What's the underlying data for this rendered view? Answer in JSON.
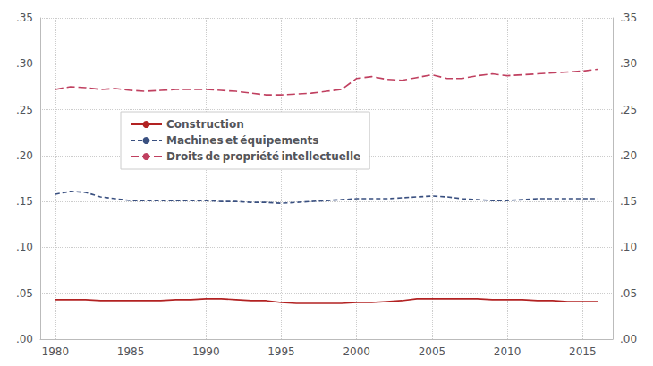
{
  "chart_data": {
    "type": "line",
    "x": [
      1980,
      1981,
      1982,
      1983,
      1984,
      1985,
      1986,
      1987,
      1988,
      1989,
      1990,
      1991,
      1992,
      1993,
      1994,
      1995,
      1996,
      1997,
      1998,
      1999,
      2000,
      2001,
      2002,
      2003,
      2004,
      2005,
      2006,
      2007,
      2008,
      2009,
      2010,
      2011,
      2012,
      2013,
      2014,
      2015,
      2016
    ],
    "series": [
      {
        "name": "Construction",
        "color": "#b22222",
        "line_style": "solid",
        "values": [
          0.043,
          0.043,
          0.043,
          0.042,
          0.042,
          0.042,
          0.042,
          0.042,
          0.043,
          0.043,
          0.044,
          0.044,
          0.043,
          0.042,
          0.042,
          0.04,
          0.039,
          0.039,
          0.039,
          0.039,
          0.04,
          0.04,
          0.041,
          0.042,
          0.044,
          0.044,
          0.044,
          0.044,
          0.044,
          0.043,
          0.043,
          0.043,
          0.042,
          0.042,
          0.041,
          0.041,
          0.041
        ]
      },
      {
        "name": "Machines et équipements",
        "color": "#3a5080",
        "line_style": "dashed",
        "values": [
          0.158,
          0.161,
          0.16,
          0.155,
          0.153,
          0.151,
          0.151,
          0.151,
          0.151,
          0.151,
          0.151,
          0.15,
          0.15,
          0.149,
          0.149,
          0.148,
          0.149,
          0.15,
          0.151,
          0.152,
          0.153,
          0.153,
          0.153,
          0.154,
          0.155,
          0.156,
          0.155,
          0.153,
          0.152,
          0.151,
          0.151,
          0.152,
          0.153,
          0.153,
          0.153,
          0.153,
          0.153
        ]
      },
      {
        "name": "Droits de propriété intellectuelle",
        "color": "#c04060",
        "line_style": "longdash",
        "values": [
          0.272,
          0.275,
          0.274,
          0.272,
          0.273,
          0.271,
          0.27,
          0.271,
          0.272,
          0.272,
          0.272,
          0.271,
          0.27,
          0.268,
          0.266,
          0.266,
          0.267,
          0.268,
          0.27,
          0.272,
          0.284,
          0.286,
          0.283,
          0.282,
          0.285,
          0.288,
          0.284,
          0.284,
          0.287,
          0.289,
          0.287,
          0.288,
          0.289,
          0.29,
          0.291,
          0.292,
          0.294
        ]
      }
    ],
    "xlim": [
      1979,
      2017
    ],
    "xticks": [
      1980,
      1985,
      1990,
      1995,
      2000,
      2005,
      2010,
      2015
    ],
    "ylim": [
      0.0,
      0.35
    ],
    "yticks": [
      {
        "value": 0.0,
        "label": ".00"
      },
      {
        "value": 0.05,
        "label": ".05"
      },
      {
        "value": 0.1,
        "label": ".10"
      },
      {
        "value": 0.15,
        "label": ".15"
      },
      {
        "value": 0.2,
        "label": ".20"
      },
      {
        "value": 0.25,
        "label": ".25"
      },
      {
        "value": 0.3,
        "label": ".30"
      },
      {
        "value": 0.35,
        "label": ".35"
      }
    ],
    "y2lim": [
      0.0,
      0.35
    ],
    "y2ticks": [
      {
        "value": 0.0,
        "label": ".00"
      },
      {
        "value": 0.05,
        "label": ".05"
      },
      {
        "value": 0.1,
        "label": ".10"
      },
      {
        "value": 0.15,
        "label": ".15"
      },
      {
        "value": 0.2,
        "label": ".20"
      },
      {
        "value": 0.25,
        "label": ".25"
      },
      {
        "value": 0.3,
        "label": ".30"
      },
      {
        "value": 0.35,
        "label": ".35"
      }
    ],
    "grid": true,
    "legend": "upper left"
  }
}
